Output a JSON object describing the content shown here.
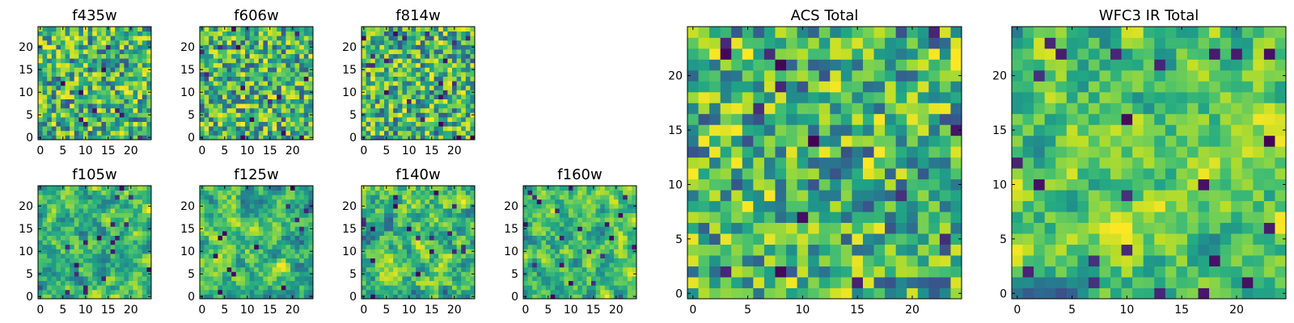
{
  "figure": {
    "background": "#ffffff"
  },
  "chart_data": [
    {
      "type": "heatmap",
      "title": "f435w",
      "seed": 11,
      "noise": "pixel",
      "xlim": [
        -0.5,
        24.5
      ],
      "ylim": [
        -0.5,
        24.5
      ],
      "xticks": [
        0,
        5,
        10,
        15,
        20
      ],
      "yticks": [
        0,
        5,
        10,
        15,
        20
      ],
      "grid_size": [
        25,
        25
      ],
      "colormap": "viridis"
    },
    {
      "type": "heatmap",
      "title": "f606w",
      "seed": 23,
      "noise": "pixel",
      "xlim": [
        -0.5,
        24.5
      ],
      "ylim": [
        -0.5,
        24.5
      ],
      "xticks": [
        0,
        5,
        10,
        15,
        20
      ],
      "yticks": [
        0,
        5,
        10,
        15,
        20
      ],
      "grid_size": [
        25,
        25
      ],
      "colormap": "viridis"
    },
    {
      "type": "heatmap",
      "title": "f814w",
      "seed": 37,
      "noise": "pixel",
      "xlim": [
        -0.5,
        24.5
      ],
      "ylim": [
        -0.5,
        24.5
      ],
      "xticks": [
        0,
        5,
        10,
        15,
        20
      ],
      "yticks": [
        0,
        5,
        10,
        15,
        20
      ],
      "grid_size": [
        25,
        25
      ],
      "colormap": "viridis"
    },
    {
      "type": "heatmap",
      "title": "f105w",
      "seed": 41,
      "noise": "smooth",
      "xlim": [
        -0.5,
        24.5
      ],
      "ylim": [
        -0.5,
        24.5
      ],
      "xticks": [
        0,
        5,
        10,
        15,
        20
      ],
      "yticks": [
        0,
        5,
        10,
        15,
        20
      ],
      "grid_size": [
        25,
        25
      ],
      "colormap": "viridis"
    },
    {
      "type": "heatmap",
      "title": "f125w",
      "seed": 53,
      "noise": "smooth",
      "xlim": [
        -0.5,
        24.5
      ],
      "ylim": [
        -0.5,
        24.5
      ],
      "xticks": [
        0,
        5,
        10,
        15,
        20
      ],
      "yticks": [
        0,
        5,
        10,
        15,
        20
      ],
      "grid_size": [
        25,
        25
      ],
      "colormap": "viridis"
    },
    {
      "type": "heatmap",
      "title": "f140w",
      "seed": 67,
      "noise": "smooth",
      "xlim": [
        -0.5,
        24.5
      ],
      "ylim": [
        -0.5,
        24.5
      ],
      "xticks": [
        0,
        5,
        10,
        15,
        20
      ],
      "yticks": [
        0,
        5,
        10,
        15,
        20
      ],
      "grid_size": [
        25,
        25
      ],
      "colormap": "viridis"
    },
    {
      "type": "heatmap",
      "title": "f160w",
      "seed": 79,
      "noise": "smooth",
      "xlim": [
        -0.5,
        24.5
      ],
      "ylim": [
        -0.5,
        24.5
      ],
      "xticks": [
        0,
        5,
        10,
        15,
        20
      ],
      "yticks": [
        0,
        5,
        10,
        15,
        20
      ],
      "grid_size": [
        25,
        25
      ],
      "colormap": "viridis"
    },
    {
      "type": "heatmap",
      "title": "ACS Total",
      "seed": 83,
      "noise": "pixel",
      "xlim": [
        -0.5,
        24.5
      ],
      "ylim": [
        -0.5,
        24.5
      ],
      "xticks": [
        0,
        5,
        10,
        15,
        20
      ],
      "yticks": [
        0,
        5,
        10,
        15,
        20
      ],
      "grid_size": [
        25,
        25
      ],
      "colormap": "viridis"
    },
    {
      "type": "heatmap",
      "title": "WFC3 IR Total",
      "seed": 97,
      "noise": "smooth",
      "xlim": [
        -0.5,
        24.5
      ],
      "ylim": [
        -0.5,
        24.5
      ],
      "xticks": [
        0,
        5,
        10,
        15,
        20
      ],
      "yticks": [
        0,
        5,
        10,
        15,
        20
      ],
      "grid_size": [
        25,
        25
      ],
      "colormap": "viridis"
    }
  ]
}
